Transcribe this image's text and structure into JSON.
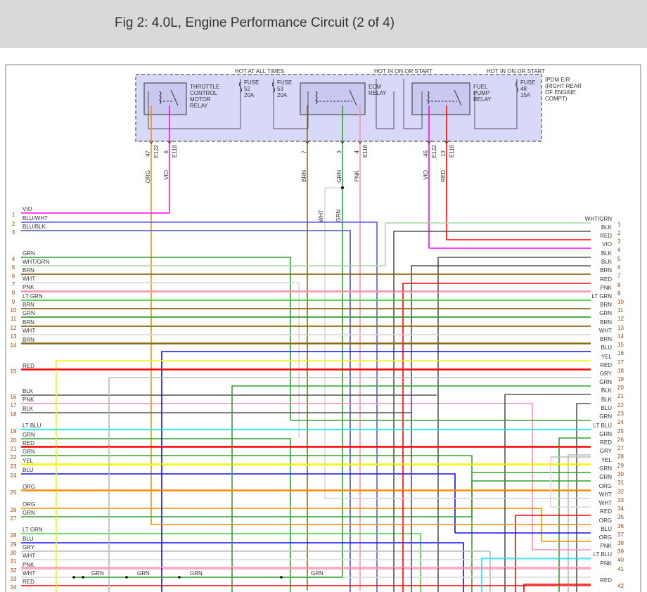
{
  "title": "Fig 2: 4.0L, Engine Performance Circuit (2 of 4)",
  "ipdm": {
    "hot_labels": [
      "HOT AT ALL TIMES",
      "HOT IN ON OR START",
      "HOT IN ON OR START"
    ],
    "module_label": [
      "IPDM E/R",
      "(RIGHT REAR",
      "OF ENGINE",
      "COMPT)"
    ],
    "relays": [
      {
        "label": [
          "THROTTLE",
          "CONTROL",
          "MOTOR",
          "RELAY"
        ]
      },
      {
        "label": [
          "ECM",
          "RELAY"
        ]
      },
      {
        "label": [
          "FUEL",
          "PUMP",
          "RELAY"
        ]
      }
    ],
    "fuses": [
      {
        "label": [
          "FUSE",
          "52",
          "20A"
        ]
      },
      {
        "label": [
          "FUSE",
          "53",
          "20A"
        ]
      },
      {
        "label": [
          "FUSE",
          "48",
          "15A"
        ]
      }
    ],
    "pins": [
      {
        "pin": "47",
        "connector": "E122",
        "color": "ORG"
      },
      {
        "pin": "6",
        "connector": "E118",
        "color": "VIO"
      },
      {
        "pin": "7",
        "connector": "",
        "color": "BRN"
      },
      {
        "pin": "3",
        "connector": "",
        "color": "GRN"
      },
      {
        "pin": "4",
        "connector": "E118",
        "color": "PNK"
      },
      {
        "pin": "46",
        "connector": "E122",
        "color": "VIO"
      },
      {
        "pin": "13",
        "connector": "E118",
        "color": "RED"
      }
    ],
    "splice_labels": [
      "WHT",
      "GRN"
    ]
  },
  "wire_colors": {
    "VIO": "#ff00ff",
    "BLU/WHT": "#5a5aff",
    "BLU/BLK": "#4a4ad0",
    "GRN": "#2ea32e",
    "WHT/GRN": "#a9d9a0",
    "BRN": "#8b6914",
    "WHT": "#d8d8d8",
    "PNK": "#ff8fb3",
    "LT GRN": "#3fd13f",
    "RED": "#ff0000",
    "YEL": "#f5f500",
    "LT BLU": "#00f0ff",
    "ORG": "#ff8c00",
    "GRY": "#b8b8b8",
    "BLK": "#555555",
    "BLU": "#1010ee"
  },
  "left_wires": [
    {
      "n": "1",
      "c": "VIO"
    },
    {
      "n": "2",
      "c": "BLU/WHT"
    },
    {
      "n": "3",
      "c": "BLU/BLK"
    },
    {
      "n": "4",
      "c": "GRN"
    },
    {
      "n": "5",
      "c": "WHT/GRN"
    },
    {
      "n": "6",
      "c": "BRN"
    },
    {
      "n": "7",
      "c": "WHT"
    },
    {
      "n": "8",
      "c": "PNK"
    },
    {
      "n": "9",
      "c": "LT GRN"
    },
    {
      "n": "10",
      "c": "BRN"
    },
    {
      "n": "11",
      "c": "GRN"
    },
    {
      "n": "12",
      "c": "BRN"
    },
    {
      "n": "13",
      "c": "WHT"
    },
    {
      "n": "14",
      "c": "BRN"
    },
    {
      "n": "15",
      "c": "RED"
    },
    {
      "n": "16",
      "c": "BLK"
    },
    {
      "n": "17",
      "c": "PNK"
    },
    {
      "n": "18",
      "c": "BLK"
    },
    {
      "n": "19",
      "c": "LT BLU"
    },
    {
      "n": "20",
      "c": "GRN"
    },
    {
      "n": "21",
      "c": "RED"
    },
    {
      "n": "22",
      "c": "GRN"
    },
    {
      "n": "23",
      "c": "YEL"
    },
    {
      "n": "24",
      "c": "BLU"
    },
    {
      "n": "25",
      "c": "ORG"
    },
    {
      "n": "26",
      "c": "ORG"
    },
    {
      "n": "27",
      "c": "GRN"
    },
    {
      "n": "28",
      "c": "LT GRN"
    },
    {
      "n": "29",
      "c": "BLU"
    },
    {
      "n": "30",
      "c": "GRY"
    },
    {
      "n": "31",
      "c": "WHT"
    },
    {
      "n": "32",
      "c": "PNK"
    },
    {
      "n": "33",
      "c": "WHT"
    },
    {
      "n": "34",
      "c": "RED"
    }
  ],
  "right_wires": [
    {
      "n": "1",
      "c": "WHT/GRN"
    },
    {
      "n": "2",
      "c": "BLK"
    },
    {
      "n": "3",
      "c": "RED"
    },
    {
      "n": "4",
      "c": "VIO"
    },
    {
      "n": "5",
      "c": "BLK"
    },
    {
      "n": "6",
      "c": "BLK"
    },
    {
      "n": "7",
      "c": "BRN"
    },
    {
      "n": "8",
      "c": "RED"
    },
    {
      "n": "9",
      "c": "PNK"
    },
    {
      "n": "10",
      "c": "LT GRN"
    },
    {
      "n": "11",
      "c": "BRN"
    },
    {
      "n": "12",
      "c": "GRN"
    },
    {
      "n": "13",
      "c": "BRN"
    },
    {
      "n": "14",
      "c": "WHT"
    },
    {
      "n": "15",
      "c": "BRN"
    },
    {
      "n": "16",
      "c": "BLU"
    },
    {
      "n": "17",
      "c": "YEL"
    },
    {
      "n": "18",
      "c": "RED"
    },
    {
      "n": "19",
      "c": "GRY"
    },
    {
      "n": "20",
      "c": "GRN"
    },
    {
      "n": "21",
      "c": "BLK"
    },
    {
      "n": "22",
      "c": "BLK"
    },
    {
      "n": "23",
      "c": "BLU"
    },
    {
      "n": "24",
      "c": "GRN"
    },
    {
      "n": "25",
      "c": "LT BLU"
    },
    {
      "n": "26",
      "c": "GRN"
    },
    {
      "n": "27",
      "c": "RED"
    },
    {
      "n": "28",
      "c": "GRY"
    },
    {
      "n": "29",
      "c": "YEL"
    },
    {
      "n": "30",
      "c": "GRN"
    },
    {
      "n": "31",
      "c": "GRN"
    },
    {
      "n": "32",
      "c": "ORG"
    },
    {
      "n": "33",
      "c": "WHT"
    },
    {
      "n": "34",
      "c": "WHT"
    },
    {
      "n": "35",
      "c": "RED"
    },
    {
      "n": "36",
      "c": "ORG"
    },
    {
      "n": "37",
      "c": "BLU"
    },
    {
      "n": "38",
      "c": "ORG"
    },
    {
      "n": "39",
      "c": "PNK"
    },
    {
      "n": "40",
      "c": "LT BLU"
    },
    {
      "n": "41",
      "c": "PNK"
    },
    {
      "n": "42",
      "c": "RED"
    }
  ],
  "bottom_splice_labels": [
    "GRN",
    "GRN",
    "GRN",
    "GRN"
  ]
}
